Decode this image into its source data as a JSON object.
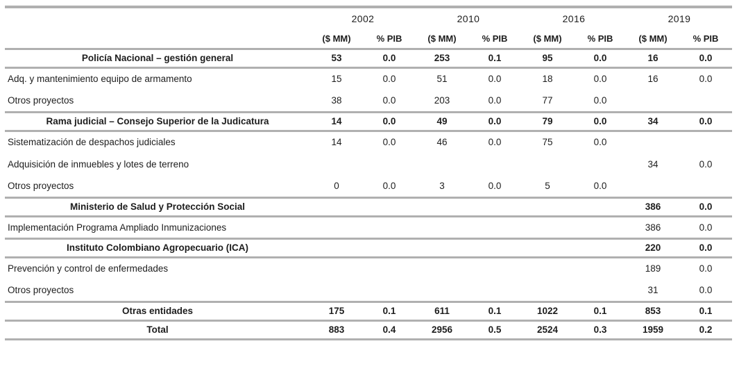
{
  "table": {
    "year_groups": [
      {
        "year": "2002"
      },
      {
        "year": "2010"
      },
      {
        "year": "2016"
      },
      {
        "year": "2019"
      }
    ],
    "subheader": {
      "amount": "($ MM)",
      "share": "% PIB"
    },
    "rows": [
      {
        "label": "Policía Nacional – gestión general",
        "type": "section",
        "values": [
          "53",
          "0.0",
          "253",
          "0.1",
          "95",
          "0.0",
          "16",
          "0.0"
        ]
      },
      {
        "label": "Adq. y mantenimiento equipo de armamento",
        "type": "item",
        "values": [
          "15",
          "0.0",
          "51",
          "0.0",
          "18",
          "0.0",
          "16",
          "0.0"
        ]
      },
      {
        "label": "Otros proyectos",
        "type": "item",
        "values": [
          "38",
          "0.0",
          "203",
          "0.0",
          "77",
          "0.0",
          "",
          ""
        ]
      },
      {
        "label": "Rama judicial – Consejo Superior de la Judicatura",
        "type": "section",
        "values": [
          "14",
          "0.0",
          "49",
          "0.0",
          "79",
          "0.0",
          "34",
          "0.0"
        ]
      },
      {
        "label": "Sistematización de despachos judiciales",
        "type": "item",
        "values": [
          "14",
          "0.0",
          "46",
          "0.0",
          "75",
          "0.0",
          "",
          ""
        ]
      },
      {
        "label": "Adquisición de inmuebles y lotes de terreno",
        "type": "item",
        "values": [
          "",
          "",
          "",
          "",
          "",
          "",
          "34",
          "0.0"
        ]
      },
      {
        "label": "Otros proyectos",
        "type": "item",
        "values": [
          "0",
          "0.0",
          "3",
          "0.0",
          "5",
          "0.0",
          "",
          ""
        ]
      },
      {
        "label": "Ministerio de Salud y Protección Social",
        "type": "section",
        "values": [
          "",
          "",
          "",
          "",
          "",
          "",
          "386",
          "0.0"
        ]
      },
      {
        "label": "Implementación Programa Ampliado Inmunizaciones",
        "type": "item",
        "values": [
          "",
          "",
          "",
          "",
          "",
          "",
          "386",
          "0.0"
        ]
      },
      {
        "label": "Instituto Colombiano Agropecuario (ICA)",
        "type": "section",
        "values": [
          "",
          "",
          "",
          "",
          "",
          "",
          "220",
          "0.0"
        ]
      },
      {
        "label": "Prevención y control de enfermedades",
        "type": "item",
        "values": [
          "",
          "",
          "",
          "",
          "",
          "",
          "189",
          "0.0"
        ]
      },
      {
        "label": "Otros proyectos",
        "type": "item",
        "values": [
          "",
          "",
          "",
          "",
          "",
          "",
          "31",
          "0.0"
        ]
      },
      {
        "label": "Otras entidades",
        "type": "section",
        "values": [
          "175",
          "0.1",
          "611",
          "0.1",
          "1022",
          "0.1",
          "853",
          "0.1"
        ]
      },
      {
        "label": "Total",
        "type": "section",
        "values": [
          "883",
          "0.4",
          "2956",
          "0.5",
          "2524",
          "0.3",
          "1959",
          "0.2"
        ]
      }
    ],
    "colors": {
      "border": "#b0b0b0",
      "text": "#1d1d1d",
      "background": "#ffffff"
    }
  }
}
